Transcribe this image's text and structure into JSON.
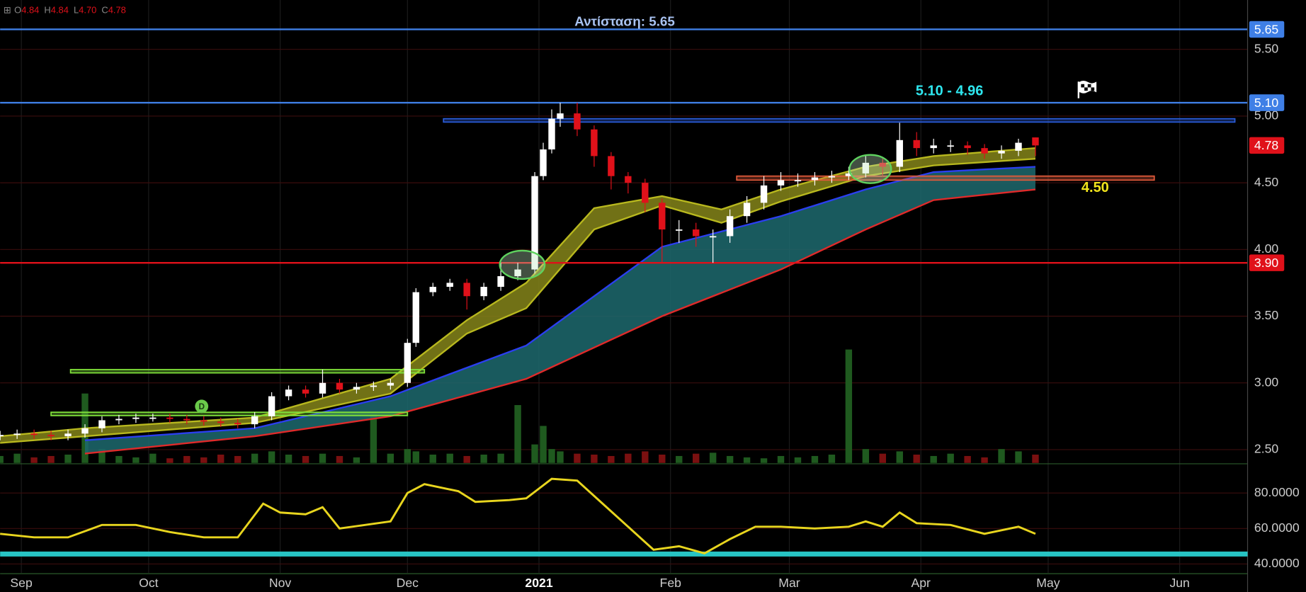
{
  "header": {
    "ohlc": [
      {
        "key": "O",
        "value": "4.84"
      },
      {
        "key": "H",
        "value": "4.84"
      },
      {
        "key": "L",
        "value": "4.70"
      },
      {
        "key": "C",
        "value": "4.78"
      }
    ]
  },
  "chart_data": [
    {
      "type": "candlestick",
      "xlim": [
        -5,
        289
      ],
      "xticks": [
        {
          "value": 0,
          "label": "Sep"
        },
        {
          "value": 30,
          "label": "Oct"
        },
        {
          "value": 61,
          "label": "Nov"
        },
        {
          "value": 91,
          "label": "Dec"
        },
        {
          "value": 122,
          "label": "2021"
        },
        {
          "value": 153,
          "label": "Feb"
        },
        {
          "value": 181,
          "label": "Mar"
        },
        {
          "value": 212,
          "label": "Apr"
        },
        {
          "value": 242,
          "label": "May"
        },
        {
          "value": 273,
          "label": "Jun"
        }
      ],
      "ylim": [
        2.4,
        5.87
      ],
      "yticks": [
        {
          "value": 2.5,
          "label": "2.50"
        },
        {
          "value": 3,
          "label": "3.00"
        },
        {
          "value": 3.5,
          "label": "3.50"
        },
        {
          "value": 4,
          "label": "4.00"
        },
        {
          "value": 4.5,
          "label": "4.50"
        },
        {
          "value": 5,
          "label": "5.00"
        },
        {
          "value": 5.5,
          "label": "5.50"
        }
      ],
      "grid": true,
      "x": [
        -5,
        -1,
        3,
        7,
        11,
        15,
        19,
        23,
        27,
        31,
        35,
        39,
        43,
        47,
        51,
        55,
        59,
        63,
        67,
        71,
        75,
        79,
        83,
        87,
        91,
        93,
        97,
        101,
        105,
        109,
        113,
        117,
        121,
        123,
        125,
        127,
        131,
        135,
        139,
        143,
        147,
        151,
        155,
        159,
        163,
        167,
        171,
        175,
        179,
        183,
        187,
        191,
        195,
        199,
        203,
        207,
        211,
        215,
        219,
        223,
        227,
        231,
        235,
        239
      ],
      "open": [
        2.6,
        2.61,
        2.62,
        2.61,
        2.6,
        2.62,
        2.66,
        2.72,
        2.73,
        2.74,
        2.74,
        2.73,
        2.72,
        2.71,
        2.7,
        2.69,
        2.75,
        2.9,
        2.95,
        2.92,
        3.0,
        2.95,
        2.97,
        2.98,
        3.0,
        3.3,
        3.68,
        3.72,
        3.75,
        3.65,
        3.72,
        3.8,
        3.85,
        4.55,
        4.75,
        4.98,
        5.02,
        4.9,
        4.7,
        4.55,
        4.5,
        4.35,
        4.15,
        4.15,
        4.1,
        4.1,
        4.25,
        4.35,
        4.48,
        4.52,
        4.52,
        4.54,
        4.55,
        4.57,
        4.65,
        4.62,
        4.82,
        4.76,
        4.78,
        4.78,
        4.76,
        4.72,
        4.74,
        4.84
      ],
      "high": [
        2.64,
        2.65,
        2.65,
        2.64,
        2.65,
        2.69,
        2.75,
        2.76,
        2.77,
        2.77,
        2.77,
        2.76,
        2.75,
        2.74,
        2.73,
        2.78,
        2.93,
        2.98,
        2.98,
        3.1,
        3.03,
        3.0,
        3.01,
        3.03,
        3.33,
        3.71,
        3.75,
        3.78,
        3.78,
        3.75,
        3.9,
        3.9,
        4.58,
        4.8,
        5.05,
        5.1,
        5.1,
        4.93,
        4.73,
        4.58,
        4.53,
        4.38,
        4.22,
        4.2,
        4.15,
        4.3,
        4.4,
        4.55,
        4.58,
        4.57,
        4.58,
        4.59,
        4.62,
        4.7,
        4.68,
        4.95,
        4.88,
        4.83,
        4.82,
        4.81,
        4.79,
        4.78,
        4.83,
        4.84
      ],
      "low": [
        2.57,
        2.58,
        2.58,
        2.57,
        2.57,
        2.59,
        2.63,
        2.69,
        2.7,
        2.71,
        2.7,
        2.69,
        2.68,
        2.67,
        2.66,
        2.66,
        2.72,
        2.87,
        2.89,
        2.89,
        2.92,
        2.92,
        2.94,
        2.95,
        2.97,
        3.27,
        3.65,
        3.69,
        3.55,
        3.62,
        3.69,
        3.77,
        3.82,
        4.52,
        4.72,
        4.92,
        4.85,
        4.62,
        4.45,
        4.42,
        4.28,
        3.9,
        4.05,
        4.02,
        3.9,
        4.05,
        4.2,
        4.3,
        4.44,
        4.47,
        4.48,
        4.5,
        4.52,
        4.54,
        4.55,
        4.58,
        4.7,
        4.72,
        4.73,
        4.71,
        4.68,
        4.68,
        4.7,
        4.7
      ],
      "close": [
        2.61,
        2.62,
        2.61,
        2.6,
        2.62,
        2.66,
        2.72,
        2.73,
        2.74,
        2.74,
        2.73,
        2.72,
        2.71,
        2.7,
        2.69,
        2.75,
        2.9,
        2.95,
        2.92,
        3.0,
        2.95,
        2.97,
        2.98,
        3.0,
        3.3,
        3.68,
        3.72,
        3.75,
        3.65,
        3.72,
        3.8,
        3.85,
        4.55,
        4.75,
        4.98,
        5.02,
        4.9,
        4.7,
        4.55,
        4.5,
        4.35,
        4.15,
        4.15,
        4.1,
        4.1,
        4.25,
        4.35,
        4.48,
        4.52,
        4.52,
        4.54,
        4.55,
        4.57,
        4.65,
        4.62,
        4.82,
        4.76,
        4.78,
        4.78,
        4.76,
        4.72,
        4.74,
        4.8,
        4.78
      ],
      "volume": [
        15,
        20,
        12,
        15,
        18,
        150,
        30,
        15,
        12,
        20,
        10,
        15,
        12,
        18,
        15,
        20,
        25,
        18,
        15,
        20,
        15,
        12,
        105,
        20,
        30,
        25,
        18,
        20,
        15,
        18,
        20,
        125,
        40,
        80,
        30,
        25,
        20,
        18,
        15,
        20,
        25,
        18,
        15,
        20,
        22,
        15,
        12,
        10,
        15,
        12,
        15,
        18,
        245,
        30,
        20,
        25,
        18,
        15,
        20,
        15,
        12,
        30,
        25,
        18
      ],
      "volume_lim": [
        0,
        1000
      ],
      "up_color": "#ffffff",
      "down_color": "#e0111a",
      "bands": [
        {
          "x": [
            -5,
            15,
            55,
            87,
            105,
            119,
            135,
            151,
            165,
            179,
            199,
            215,
            239
          ],
          "upper": [
            2.6,
            2.66,
            2.74,
            3.03,
            3.47,
            3.75,
            4.31,
            4.4,
            4.3,
            4.45,
            4.62,
            4.7,
            4.76
          ],
          "lower": [
            2.55,
            2.6,
            2.7,
            2.92,
            3.37,
            3.56,
            4.15,
            4.33,
            4.2,
            4.36,
            4.55,
            4.63,
            4.68
          ],
          "upper_color": "#b8b81e",
          "lower_color": "#b8b81e",
          "fill": "#85851a"
        },
        {
          "x": [
            15,
            55,
            87,
            119,
            151,
            179,
            199,
            215,
            239
          ],
          "upper": [
            2.57,
            2.66,
            2.9,
            3.28,
            4.02,
            4.25,
            4.45,
            4.58,
            4.62
          ],
          "lower": [
            2.47,
            2.6,
            2.75,
            3.03,
            3.5,
            3.85,
            4.15,
            4.37,
            4.45
          ],
          "upper_color": "#2b3ff0",
          "lower_color": "#e02a2a",
          "fill": "#1d6a6e"
        }
      ],
      "levels": [
        {
          "value": 5.65,
          "label": "5.65",
          "color": "#3f7fe6"
        },
        {
          "value": 5.1,
          "label": "5.10",
          "color": "#3f7fe6"
        },
        {
          "value": 3.9,
          "label": "3.90",
          "color": "#e0111a"
        }
      ],
      "last_price": {
        "value": 4.78,
        "label": "4.78",
        "color": "#e0111a"
      },
      "zones": [
        {
          "x": [
            99.5,
            286
          ],
          "y": [
            4.96,
            4.98
          ],
          "color": "#2a5bd7"
        },
        {
          "x": [
            168.6,
            267
          ],
          "y": [
            4.52,
            4.55
          ],
          "color": "#e05a3a"
        },
        {
          "x": [
            11.6,
            95
          ],
          "y": [
            3.08,
            3.1
          ],
          "color": "#7fe03a"
        },
        {
          "x": [
            7,
            91
          ],
          "y": [
            2.76,
            2.78
          ],
          "color": "#7fe03a"
        }
      ],
      "annotations": [
        {
          "text": "Αντίσταση: 5.65",
          "color": "#a9c3f2"
        },
        {
          "text": "5.10 - 4.96",
          "color": "#2ee6ee"
        },
        {
          "text": "4.50",
          "color": "#f2e41c"
        },
        {
          "text": "D",
          "color": "#1a3a12"
        }
      ]
    },
    {
      "type": "line",
      "x": [
        -5,
        3,
        11,
        19,
        27,
        35,
        43,
        51,
        57,
        61,
        67,
        71,
        75,
        81,
        87,
        91,
        95,
        103,
        107,
        115,
        119,
        125,
        131,
        137,
        143,
        149,
        155,
        161,
        167,
        173,
        179,
        187,
        195,
        199,
        203,
        207,
        211,
        219,
        227,
        235,
        239
      ],
      "values": [
        57,
        55,
        55,
        62,
        62,
        58,
        55,
        55,
        74,
        69,
        68,
        72,
        60,
        62,
        64,
        80,
        85,
        81,
        75,
        76,
        77,
        88,
        87,
        74,
        61,
        48,
        50,
        46,
        54,
        61,
        61,
        60,
        61,
        64,
        61,
        69,
        63,
        62,
        57,
        61,
        57
      ],
      "color": "#e8d51e",
      "ylim": [
        35,
        96
      ],
      "yticks": [
        {
          "value": 40,
          "label": "40.0000"
        },
        {
          "value": 60,
          "label": "60.0000"
        },
        {
          "value": 80,
          "label": "80.0000"
        }
      ],
      "hline": 45.6,
      "hline_color": "#27c4c4"
    }
  ]
}
